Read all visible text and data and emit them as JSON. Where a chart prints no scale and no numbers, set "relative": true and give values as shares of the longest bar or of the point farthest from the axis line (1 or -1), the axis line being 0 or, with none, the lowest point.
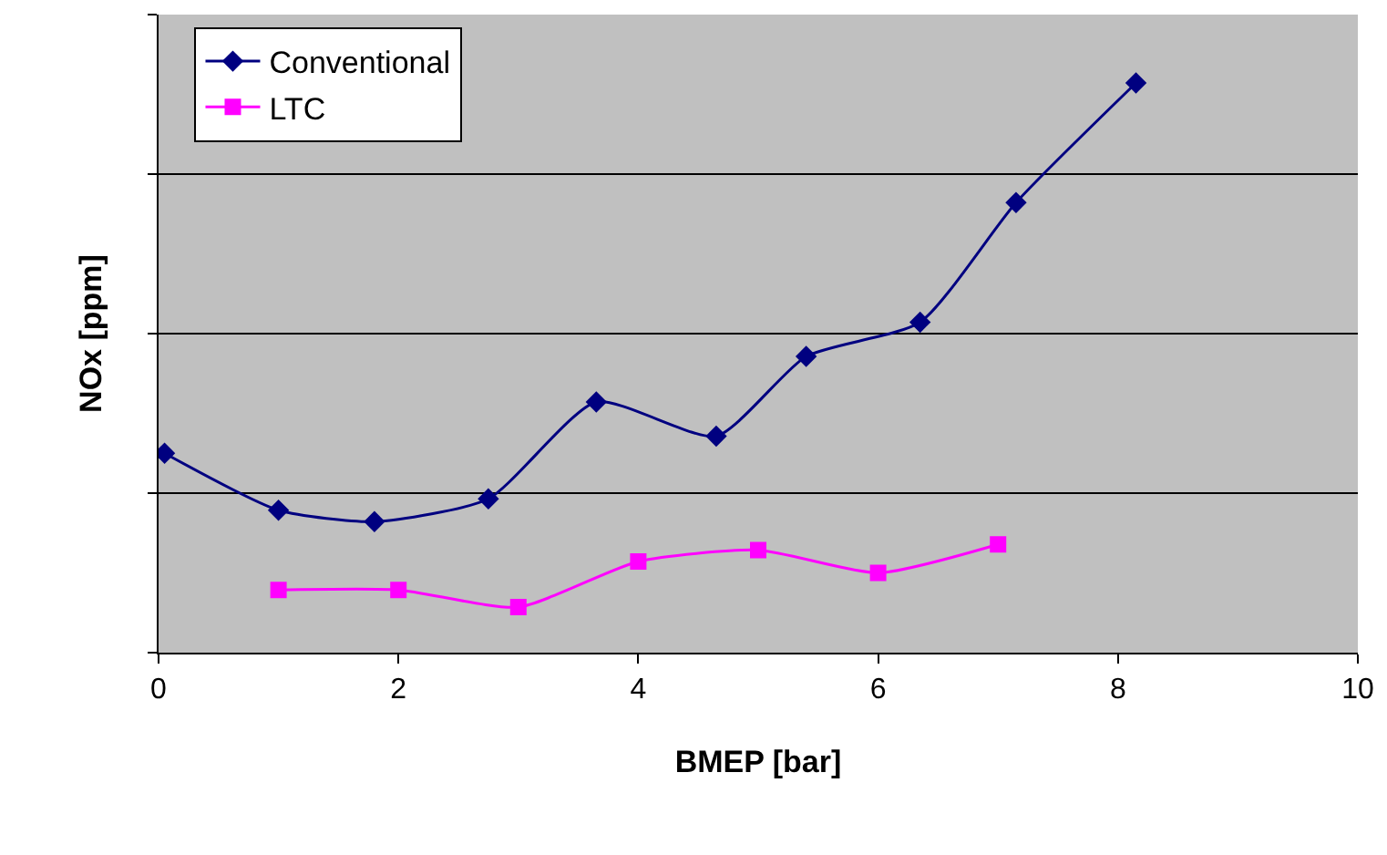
{
  "chart_data": {
    "type": "line",
    "relative": true,
    "xlabel": "BMEP [bar]",
    "ylabel": "NOx [ppm]",
    "xlim": [
      0,
      10
    ],
    "xticks": [
      0,
      2,
      4,
      6,
      8,
      10
    ],
    "grid": "y",
    "legend": "top left",
    "series": [
      {
        "name": "Conventional",
        "color": "#000080",
        "marker": "diamond",
        "x": [
          0.05,
          1.0,
          1.8,
          2.75,
          3.65,
          4.65,
          5.4,
          6.35,
          7.15,
          8.15
        ],
        "values": [
          0.35,
          0.25,
          0.23,
          0.27,
          0.44,
          0.38,
          0.52,
          0.58,
          0.79,
          1
        ]
      },
      {
        "name": "LTC",
        "color": "#ff00ff",
        "marker": "square",
        "x": [
          1,
          2,
          3,
          4,
          5,
          6,
          7
        ],
        "values": [
          0.11,
          0.11,
          0.08,
          0.16,
          0.18,
          0.14,
          0.19
        ]
      }
    ]
  }
}
